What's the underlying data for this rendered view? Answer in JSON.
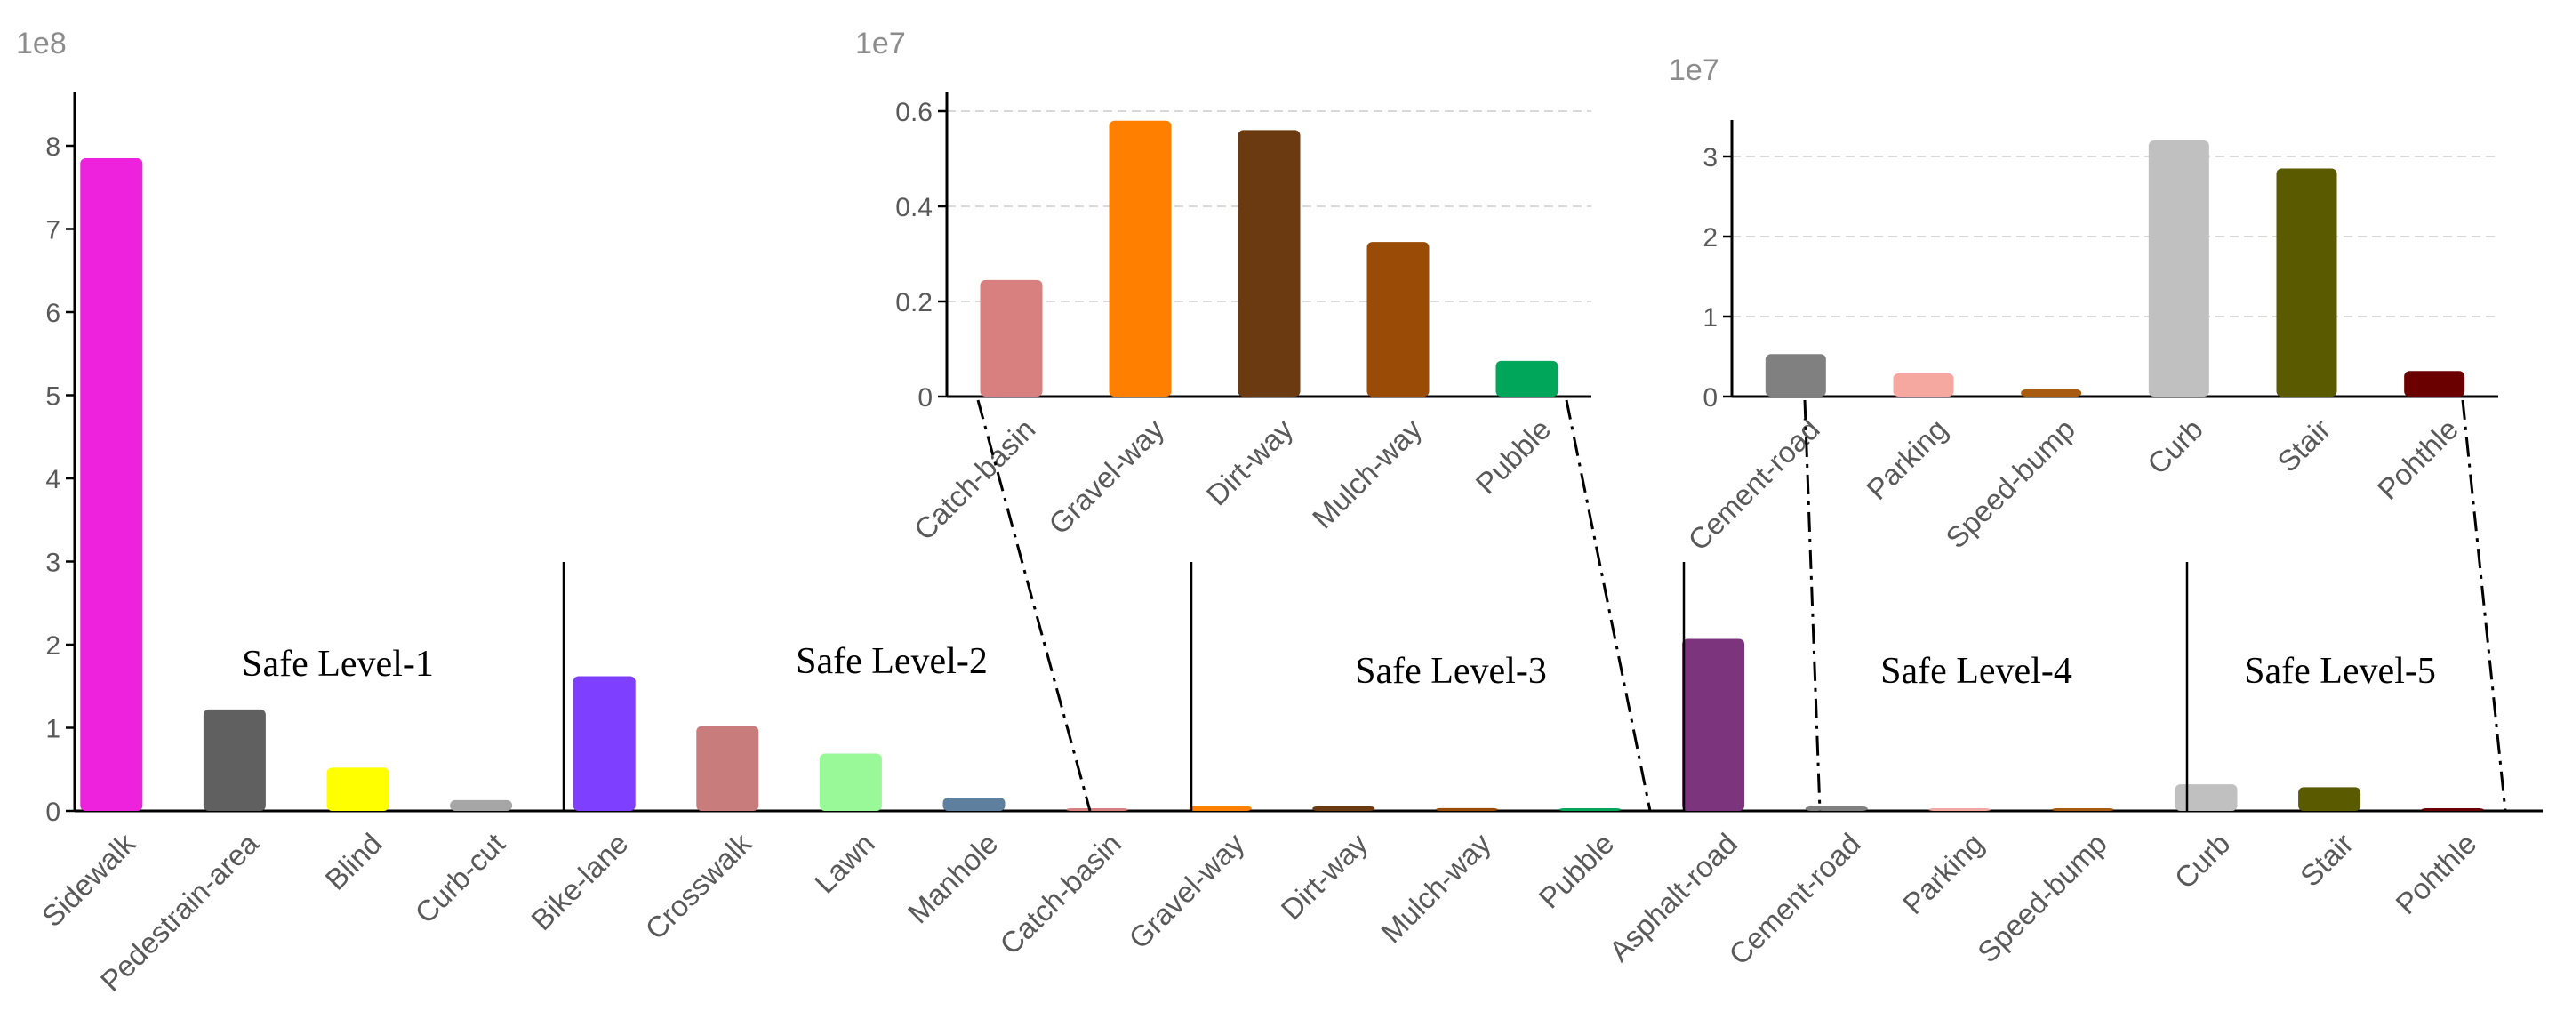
{
  "colors": {
    "axis": "#000000",
    "grid": "#d9d9d9",
    "tick_text": "#595959",
    "exponent_text": "#8c8c8c"
  },
  "chart_data": [
    {
      "id": "main",
      "type": "bar",
      "exponent_label": "1e8",
      "ylim": [
        0,
        8.7
      ],
      "yticks": [
        0,
        1,
        2,
        3,
        4,
        5,
        6,
        7,
        8
      ],
      "ytick_labels": [
        "0",
        "1",
        "2",
        "3",
        "4",
        "5",
        "6",
        "7",
        "8"
      ],
      "grid": false,
      "categories": [
        "Sidewalk",
        "Pedestrain-area",
        "Blind",
        "Curb-cut",
        "Bike-lane",
        "Crosswalk",
        "Lawn",
        "Manhole",
        "Catch-basin",
        "Gravel-way",
        "Dirt-way",
        "Mulch-way",
        "Pubble",
        "Asphalt-road",
        "Cement-road",
        "Parking",
        "Speed-bump",
        "Curb",
        "Stair",
        "Pohthle"
      ],
      "values": [
        7.85,
        1.22,
        0.52,
        0.13,
        1.62,
        1.02,
        0.69,
        0.16,
        0.025,
        0.058,
        0.056,
        0.033,
        0.008,
        2.07,
        0.053,
        0.029,
        0.009,
        0.32,
        0.285,
        0.032
      ],
      "colors": [
        "#ee22dd",
        "#606060",
        "#ffff00",
        "#a6a6a6",
        "#7f3fff",
        "#c87c7c",
        "#99f999",
        "#5f7f9f",
        "#d87f7f",
        "#ff7f00",
        "#6b3a10",
        "#9a4c06",
        "#00a65a",
        "#7c357c",
        "#808080",
        "#f5a8a0",
        "#a85a10",
        "#c0c0c0",
        "#5a5a00",
        "#6b0000"
      ],
      "levels": [
        "Safe Level-1",
        "Safe Level-2",
        "Safe Level-3",
        "Safe Level-4",
        "Safe Level-5"
      ]
    },
    {
      "id": "inset-level-3",
      "type": "bar",
      "exponent_label": "1e7",
      "ylim": [
        0,
        0.64
      ],
      "yticks": [
        0,
        0.2,
        0.4,
        0.6
      ],
      "ytick_labels": [
        "0",
        "0.2",
        "0.4",
        "0.6"
      ],
      "grid": true,
      "categories": [
        "Catch-basin",
        "Gravel-way",
        "Dirt-way",
        "Mulch-way",
        "Pubble"
      ],
      "values": [
        0.245,
        0.58,
        0.56,
        0.325,
        0.075
      ],
      "colors": [
        "#d87f7f",
        "#ff7f00",
        "#6b3a10",
        "#9a4c06",
        "#00a65a"
      ]
    },
    {
      "id": "inset-level-4-5",
      "type": "bar",
      "exponent_label": "1e7",
      "ylim": [
        0,
        3.5
      ],
      "yticks": [
        0,
        1,
        2,
        3
      ],
      "ytick_labels": [
        "0",
        "1",
        "2",
        "3"
      ],
      "grid": true,
      "categories": [
        "Cement-road",
        "Parking",
        "Speed-bump",
        "Curb",
        "Stair",
        "Pohthle"
      ],
      "values": [
        0.53,
        0.29,
        0.09,
        3.2,
        2.85,
        0.32
      ],
      "colors": [
        "#808080",
        "#f5a8a0",
        "#a85a10",
        "#c0c0c0",
        "#5a5a00",
        "#6b0000"
      ]
    }
  ]
}
